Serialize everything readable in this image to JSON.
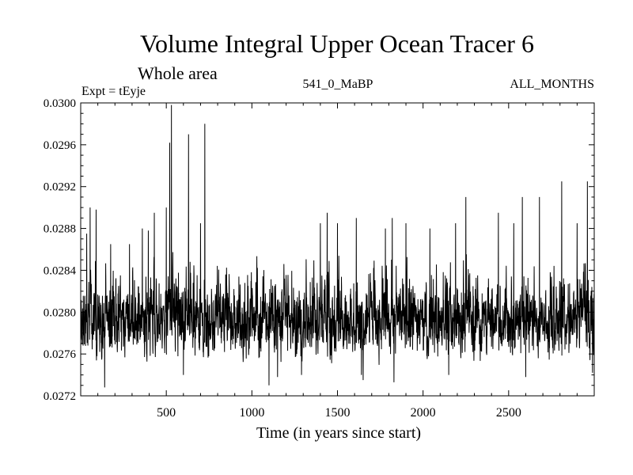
{
  "chart_data": {
    "type": "line",
    "title": "Volume Integral Upper Ocean Tracer 6",
    "subtitle": "Whole area",
    "annotations": {
      "left": "Expt = tEyje",
      "center": "541_0_MaBP",
      "right": "ALL_MONTHS"
    },
    "xlabel": "Time (in years since start)",
    "ylabel": "",
    "xlim": [
      0,
      3000
    ],
    "ylim": [
      0.0272,
      0.03
    ],
    "x_ticks": [
      500,
      1000,
      1500,
      2000,
      2500
    ],
    "x_tick_labels": [
      "500",
      "1000",
      "1500",
      "2000",
      "2500"
    ],
    "y_ticks": [
      0.0272,
      0.0276,
      0.028,
      0.0284,
      0.0288,
      0.0292,
      0.0296,
      0.03
    ],
    "y_tick_labels": [
      "0.0272",
      "0.0276",
      "0.0280",
      "0.0284",
      "0.0288",
      "0.0292",
      "0.0296",
      "0.0300"
    ],
    "grid": false,
    "series": [
      {
        "color": "#000000",
        "baseline_mean": 0.02792,
        "typical_range": [
          0.02748,
          0.02845
        ],
        "peaks": [
          {
            "x": 35,
            "y": 0.02875
          },
          {
            "x": 55,
            "y": 0.029
          },
          {
            "x": 90,
            "y": 0.02898
          },
          {
            "x": 175,
            "y": 0.02865
          },
          {
            "x": 285,
            "y": 0.02865
          },
          {
            "x": 360,
            "y": 0.0288
          },
          {
            "x": 395,
            "y": 0.02878
          },
          {
            "x": 430,
            "y": 0.02895
          },
          {
            "x": 500,
            "y": 0.029
          },
          {
            "x": 520,
            "y": 0.02962
          },
          {
            "x": 530,
            "y": 0.02998
          },
          {
            "x": 600,
            "y": 0.02888
          },
          {
            "x": 630,
            "y": 0.0297
          },
          {
            "x": 700,
            "y": 0.02885
          },
          {
            "x": 725,
            "y": 0.0298
          },
          {
            "x": 1400,
            "y": 0.02885
          },
          {
            "x": 1440,
            "y": 0.02895
          },
          {
            "x": 1500,
            "y": 0.02885
          },
          {
            "x": 1610,
            "y": 0.0289
          },
          {
            "x": 1780,
            "y": 0.0288
          },
          {
            "x": 1820,
            "y": 0.0289
          },
          {
            "x": 1900,
            "y": 0.02885
          },
          {
            "x": 2040,
            "y": 0.0288
          },
          {
            "x": 2190,
            "y": 0.02885
          },
          {
            "x": 2250,
            "y": 0.0291
          },
          {
            "x": 2440,
            "y": 0.02895
          },
          {
            "x": 2530,
            "y": 0.02885
          },
          {
            "x": 2580,
            "y": 0.0291
          },
          {
            "x": 2680,
            "y": 0.0291
          },
          {
            "x": 2810,
            "y": 0.02925
          },
          {
            "x": 2900,
            "y": 0.02885
          },
          {
            "x": 2960,
            "y": 0.02925
          }
        ],
        "troughs": [
          {
            "x": 140,
            "y": 0.02728
          },
          {
            "x": 600,
            "y": 0.0274
          },
          {
            "x": 1100,
            "y": 0.0273
          },
          {
            "x": 1150,
            "y": 0.02738
          },
          {
            "x": 1290,
            "y": 0.0274
          },
          {
            "x": 1650,
            "y": 0.02735
          },
          {
            "x": 1640,
            "y": 0.0274
          },
          {
            "x": 1830,
            "y": 0.02733
          },
          {
            "x": 2150,
            "y": 0.0274
          },
          {
            "x": 2600,
            "y": 0.02738
          },
          {
            "x": 2990,
            "y": 0.02742
          }
        ]
      }
    ]
  }
}
